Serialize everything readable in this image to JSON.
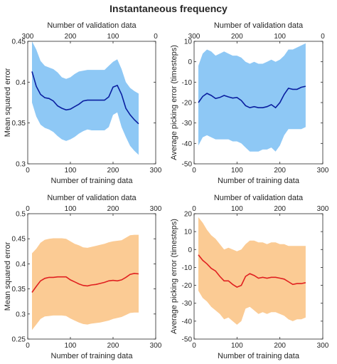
{
  "title": "Instantaneous frequency",
  "chart_data": [
    {
      "type": "line",
      "panel": "top-left",
      "xlabel": "Number of training data",
      "x2label": "Number of validation data",
      "ylabel": "Mean squared error",
      "xlim": [
        0,
        300
      ],
      "ylim": [
        0.3,
        0.45
      ],
      "xticks": [
        0,
        100,
        200,
        300
      ],
      "x2ticks": [
        300,
        200,
        100,
        0
      ],
      "yticks": [
        0.3,
        0.35,
        0.4,
        0.45
      ],
      "ytick_labels": [
        "0.3",
        "0.35",
        "0.4",
        "0.45"
      ],
      "grid": false,
      "color_line": "#0a1fa0",
      "color_band": "#8ec8f5",
      "x": [
        10,
        20,
        30,
        40,
        50,
        60,
        70,
        80,
        90,
        100,
        110,
        120,
        130,
        140,
        150,
        160,
        170,
        180,
        190,
        200,
        210,
        220,
        230,
        240,
        250,
        260
      ],
      "mean": [
        0.413,
        0.395,
        0.385,
        0.381,
        0.38,
        0.377,
        0.371,
        0.368,
        0.366,
        0.367,
        0.37,
        0.373,
        0.377,
        0.378,
        0.378,
        0.378,
        0.378,
        0.378,
        0.382,
        0.394,
        0.396,
        0.385,
        0.368,
        0.36,
        0.354,
        0.349
      ],
      "upper": [
        0.45,
        0.44,
        0.426,
        0.42,
        0.418,
        0.416,
        0.412,
        0.406,
        0.404,
        0.406,
        0.41,
        0.413,
        0.414,
        0.415,
        0.415,
        0.415,
        0.415,
        0.415,
        0.42,
        0.425,
        0.428,
        0.416,
        0.4,
        0.393,
        0.389,
        0.386
      ],
      "lower": [
        0.375,
        0.358,
        0.348,
        0.344,
        0.342,
        0.339,
        0.334,
        0.33,
        0.328,
        0.33,
        0.333,
        0.337,
        0.34,
        0.342,
        0.341,
        0.341,
        0.341,
        0.341,
        0.345,
        0.36,
        0.363,
        0.345,
        0.333,
        0.322,
        0.316,
        0.311
      ]
    },
    {
      "type": "line",
      "panel": "top-right",
      "xlabel": "Number of training data",
      "x2label": "Number of validation data",
      "ylabel": "Average picking error (timesteps)",
      "xlim": [
        0,
        300
      ],
      "ylim": [
        -50,
        10
      ],
      "xticks": [
        0,
        100,
        200,
        300
      ],
      "x2ticks": [
        300,
        200,
        100,
        0
      ],
      "yticks": [
        -50,
        -40,
        -30,
        -20,
        -10,
        0,
        10
      ],
      "ytick_labels": [
        "-50",
        "-40",
        "-30",
        "-20",
        "-10",
        "0",
        "10"
      ],
      "grid": false,
      "color_line": "#0a1fa0",
      "color_band": "#8ec8f5",
      "x": [
        10,
        20,
        30,
        40,
        50,
        60,
        70,
        80,
        90,
        100,
        110,
        120,
        130,
        140,
        150,
        160,
        170,
        180,
        190,
        200,
        210,
        220,
        230,
        240,
        250,
        260
      ],
      "mean": [
        -20,
        -17,
        -15.5,
        -16.5,
        -18,
        -17.5,
        -16.5,
        -17.2,
        -17.8,
        -17.5,
        -19,
        -21.5,
        -22.5,
        -22,
        -22.5,
        -22.5,
        -22,
        -21,
        -22.5,
        -20,
        -16,
        -13,
        -13.5,
        -13.5,
        -12.5,
        -12
      ],
      "upper": [
        -2,
        4,
        6,
        5,
        3,
        4,
        5,
        4,
        3,
        3,
        2,
        0,
        -1,
        0,
        -1,
        -1,
        0,
        1,
        0,
        1,
        3,
        6,
        6,
        7,
        8,
        9
      ],
      "lower": [
        -41,
        -37,
        -36,
        -37,
        -38,
        -38,
        -38,
        -38,
        -39,
        -39,
        -40,
        -42,
        -44,
        -44,
        -44,
        -43,
        -43,
        -42,
        -44,
        -41,
        -36,
        -33,
        -33,
        -33,
        -33,
        -32
      ]
    },
    {
      "type": "line",
      "panel": "bottom-left",
      "xlabel": "Number of training data",
      "x2label": "Number of validation data",
      "ylabel": "Mean squared error",
      "xlim": [
        0,
        300
      ],
      "ylim": [
        0.25,
        0.5
      ],
      "xticks": [
        0,
        100,
        200,
        300
      ],
      "x2ticks": [
        0,
        100,
        200,
        300
      ],
      "yticks": [
        0.25,
        0.3,
        0.35,
        0.4,
        0.45,
        0.5
      ],
      "ytick_labels": [
        "0.25",
        "0.3",
        "0.35",
        "0.4",
        "0.45",
        "0.5"
      ],
      "grid": false,
      "color_line": "#e02020",
      "color_band": "#fbcb94",
      "x": [
        10,
        20,
        30,
        40,
        50,
        60,
        70,
        80,
        90,
        100,
        110,
        120,
        130,
        140,
        150,
        160,
        170,
        180,
        190,
        200,
        210,
        220,
        230,
        240,
        250,
        260
      ],
      "mean": [
        0.343,
        0.355,
        0.366,
        0.371,
        0.373,
        0.373,
        0.374,
        0.374,
        0.374,
        0.368,
        0.364,
        0.36,
        0.357,
        0.356,
        0.358,
        0.359,
        0.361,
        0.363,
        0.366,
        0.367,
        0.366,
        0.368,
        0.373,
        0.379,
        0.381,
        0.38
      ],
      "upper": [
        0.421,
        0.43,
        0.442,
        0.448,
        0.45,
        0.451,
        0.451,
        0.451,
        0.45,
        0.445,
        0.44,
        0.437,
        0.433,
        0.432,
        0.434,
        0.436,
        0.438,
        0.44,
        0.443,
        0.445,
        0.446,
        0.447,
        0.452,
        0.457,
        0.458,
        0.458
      ],
      "lower": [
        0.268,
        0.279,
        0.29,
        0.295,
        0.296,
        0.297,
        0.297,
        0.297,
        0.296,
        0.291,
        0.287,
        0.283,
        0.28,
        0.279,
        0.281,
        0.282,
        0.283,
        0.285,
        0.287,
        0.29,
        0.292,
        0.294,
        0.298,
        0.302,
        0.303,
        0.303
      ]
    },
    {
      "type": "line",
      "panel": "bottom-right",
      "xlabel": "Number of training data",
      "x2label": "Number of validation data",
      "ylabel": "Average picking error (timesteps)",
      "xlim": [
        0,
        300
      ],
      "ylim": [
        -50,
        20
      ],
      "xticks": [
        0,
        100,
        200,
        300
      ],
      "x2ticks": [
        0,
        100,
        200,
        300
      ],
      "yticks": [
        -50,
        -40,
        -30,
        -20,
        -10,
        0,
        10,
        20
      ],
      "ytick_labels": [
        "-50",
        "-40",
        "-30",
        "-20",
        "-10",
        "0",
        "10",
        "20"
      ],
      "grid": false,
      "color_line": "#e02020",
      "color_band": "#fbcb94",
      "x": [
        10,
        20,
        30,
        40,
        50,
        60,
        70,
        80,
        90,
        100,
        110,
        120,
        130,
        140,
        150,
        160,
        170,
        180,
        190,
        200,
        210,
        220,
        230,
        240,
        250,
        260
      ],
      "mean": [
        -3,
        -6,
        -8,
        -10.5,
        -12,
        -15,
        -17.5,
        -17.5,
        -19.5,
        -21,
        -20,
        -15,
        -13.5,
        -14.5,
        -16,
        -15.5,
        -16,
        -15.5,
        -15.5,
        -16,
        -16.5,
        -18,
        -19.5,
        -19,
        -19,
        -18.5
      ],
      "upper": [
        18,
        15,
        11,
        8,
        6,
        3,
        0,
        1,
        0,
        -1,
        0,
        3,
        5,
        5,
        4,
        4,
        3,
        4,
        4,
        3,
        3,
        2,
        2,
        2,
        2,
        2
      ],
      "lower": [
        -23,
        -27,
        -29,
        -32,
        -34,
        -36,
        -39,
        -38,
        -40,
        -42,
        -40,
        -33,
        -32,
        -34,
        -36,
        -35,
        -36,
        -35,
        -35,
        -36,
        -37,
        -39,
        -40,
        -39,
        -39,
        -38
      ]
    }
  ]
}
